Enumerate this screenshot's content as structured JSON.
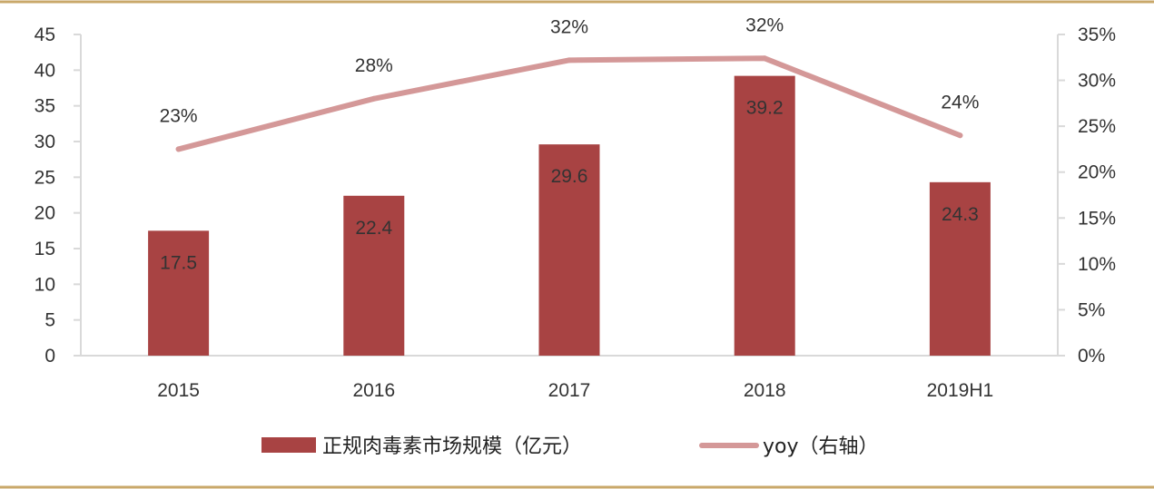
{
  "chart_data": {
    "type": "bar",
    "categories": [
      "2015",
      "2016",
      "2017",
      "2018",
      "2019H1"
    ],
    "series": [
      {
        "name": "正规肉毒素市场规模（亿元）",
        "type": "bar",
        "axis": "left",
        "values": [
          17.5,
          22.4,
          29.6,
          39.2,
          24.3
        ],
        "labels": [
          "17.5",
          "22.4",
          "29.6",
          "39.2",
          "24.3"
        ],
        "color": "#A84343"
      },
      {
        "name": "yoy（右轴）",
        "type": "line",
        "axis": "right",
        "values": [
          0.225,
          0.28,
          0.322,
          0.324,
          0.24
        ],
        "labels": [
          "23%",
          "28%",
          "32%",
          "32%",
          "24%"
        ],
        "color": "#D49898"
      }
    ],
    "y_left": {
      "min": 0,
      "max": 45,
      "ticks": [
        "0",
        "5",
        "10",
        "15",
        "20",
        "25",
        "30",
        "35",
        "40",
        "45"
      ]
    },
    "y_right": {
      "min": 0,
      "max": 0.35,
      "ticks": [
        "0%",
        "5%",
        "10%",
        "15%",
        "20%",
        "25%",
        "30%",
        "35%"
      ]
    },
    "legend_position": "bottom",
    "grid": false,
    "frame_color": "#C9A86A",
    "axis_color": "#D9D9D9"
  }
}
